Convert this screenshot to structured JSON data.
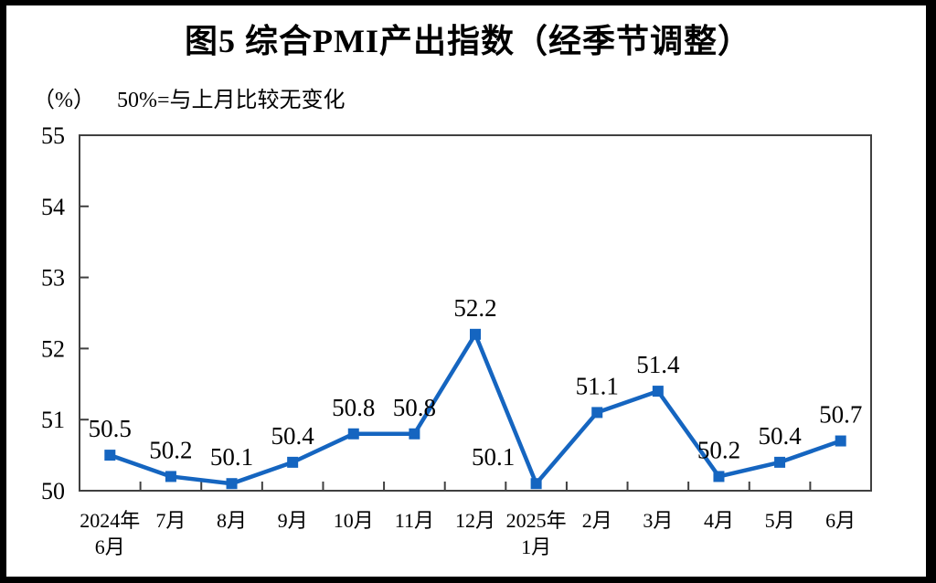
{
  "figure": {
    "title": "图5 综合PMI产出指数（经季节调整）",
    "y_axis_unit": "（%）",
    "reference_note": "50%=与上月比较无变化"
  },
  "colors": {
    "line": "#1565C0",
    "marker": "#1565C0",
    "axis": "#404040",
    "text": "#000000",
    "title": "#000000",
    "frame": "#000000",
    "background": "#ffffff"
  },
  "chart_data": {
    "type": "line",
    "title": "图5 综合PMI产出指数（经季节调整）",
    "ylabel": "（%）",
    "annotation": "50%=与上月比较无变化",
    "categories": [
      "2024年\n6月",
      "7月",
      "8月",
      "9月",
      "10月",
      "11月",
      "12月",
      "2025年\n1月",
      "2月",
      "3月",
      "4月",
      "5月",
      "6月"
    ],
    "values": [
      50.5,
      50.2,
      50.1,
      50.4,
      50.8,
      50.8,
      52.2,
      50.1,
      51.1,
      51.4,
      50.2,
      50.4,
      50.7
    ],
    "labels": [
      "50.5",
      "50.2",
      "50.1",
      "50.4",
      "50.8",
      "50.8",
      "52.2",
      "50.1",
      "51.1",
      "51.4",
      "50.2",
      "50.4",
      "50.7"
    ],
    "ylim": [
      50,
      55
    ],
    "y_ticks": [
      50,
      51,
      52,
      53,
      54,
      55
    ],
    "grid": false,
    "legend": "none",
    "marker": "square",
    "series_name": "综合PMI产出指数"
  }
}
